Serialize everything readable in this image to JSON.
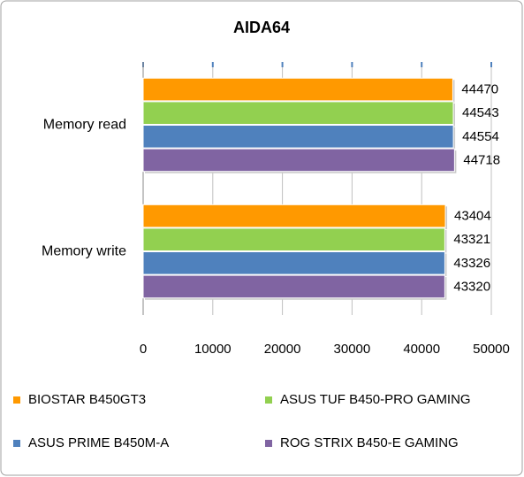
{
  "chart_data": {
    "type": "bar",
    "orientation": "horizontal",
    "title": "AIDA64",
    "categories": [
      "Memory read",
      "Memory write"
    ],
    "series": [
      {
        "name": "BIOSTAR B450GT3",
        "color": "#ff9900",
        "values": [
          44470,
          43404
        ]
      },
      {
        "name": "ASUS TUF B450-PRO GAMING",
        "color": "#92d050",
        "values": [
          44543,
          43321
        ]
      },
      {
        "name": "ASUS PRIME B450M-A",
        "color": "#4f81bd",
        "values": [
          44554,
          43326
        ]
      },
      {
        "name": "ROG STRIX B450-E GAMING",
        "color": "#8064a2",
        "values": [
          44718,
          43320
        ]
      }
    ],
    "xlim": [
      0,
      50000
    ],
    "xticks": [
      0,
      10000,
      20000,
      30000,
      40000,
      50000
    ],
    "grid": true,
    "legend": "bottom"
  }
}
